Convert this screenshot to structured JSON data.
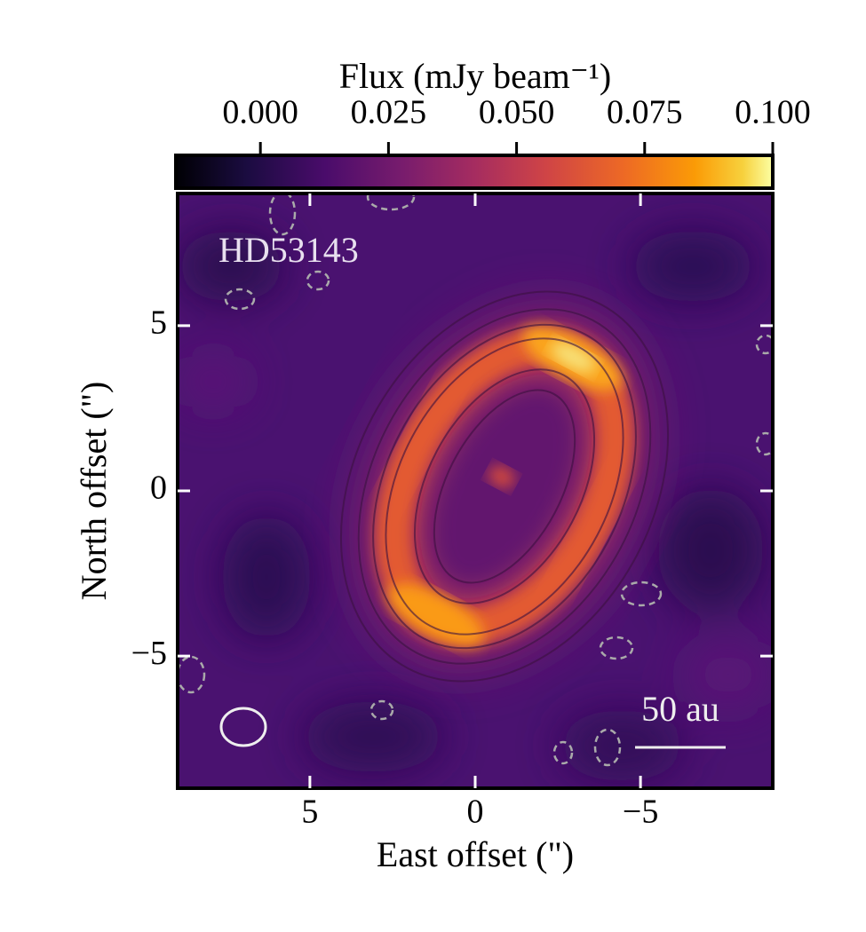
{
  "chart_data": {
    "type": "heatmap",
    "xlabel": "East offset (\")",
    "ylabel": "North offset (\")",
    "xlim": [
      9,
      -9
    ],
    "ylim": [
      -9,
      9
    ],
    "xticks": [
      5,
      0,
      {
        "value": -5,
        "label": "−5"
      }
    ],
    "yticks": [
      5,
      0,
      {
        "value": -5,
        "label": "−5"
      }
    ],
    "annotations": [
      "HD53143",
      "50 au"
    ],
    "colorbar": {
      "label": "Flux (mJy beam⁻¹)",
      "colormap": "inferno",
      "clim": [
        -0.0165,
        0.1
      ],
      "ticks": [
        {
          "value": 0,
          "label": "0.000"
        },
        {
          "value": 0.025,
          "label": "0.025"
        },
        {
          "value": 0.05,
          "label": "0.050"
        },
        {
          "value": 0.075,
          "label": "0.075"
        },
        {
          "value": 0.1,
          "label": "0.100"
        }
      ]
    }
  }
}
